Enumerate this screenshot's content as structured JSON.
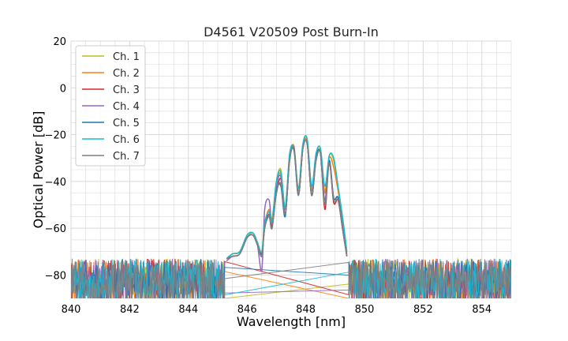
{
  "chart_data": {
    "type": "line",
    "title": "D4561 V20509 Post Burn-In",
    "xlabel": "Wavelength [nm]",
    "ylabel": "Optical Power [dB]",
    "xlim": [
      840,
      855
    ],
    "ylim": [
      -90,
      20
    ],
    "xticks": [
      840,
      842,
      844,
      846,
      848,
      850,
      852,
      854
    ],
    "yticks": [
      20,
      0,
      -20,
      -40,
      -60,
      -80
    ],
    "grid": true,
    "legend_position": "top-left",
    "noise_floor": {
      "mean": -81,
      "min": -90,
      "max": -71
    },
    "series": [
      {
        "name": "Ch. 1",
        "color": "#bcbd22",
        "x": [
          845.3,
          845.5,
          845.75,
          846.0,
          846.2,
          846.35,
          846.5,
          846.6,
          846.75,
          846.85,
          847.0,
          847.15,
          847.3,
          847.45,
          847.6,
          847.75,
          847.9,
          848.05,
          848.2,
          848.35,
          848.5,
          848.65,
          848.8,
          848.95,
          849.1,
          849.25,
          849.4
        ],
        "y": [
          -73,
          -71,
          -70,
          -64,
          -62,
          -66,
          -71,
          -60,
          -52,
          -56,
          -40,
          -35,
          -51,
          -29,
          -26,
          -43,
          -25,
          -23,
          -43,
          -30,
          -27,
          -44,
          -29,
          -31,
          -43,
          -55,
          -70
        ]
      },
      {
        "name": "Ch. 2",
        "color": "#ff7f0e",
        "x": [
          845.3,
          845.5,
          845.75,
          846.0,
          846.2,
          846.35,
          846.5,
          846.6,
          846.75,
          846.85,
          847.0,
          847.15,
          847.3,
          847.45,
          847.6,
          847.75,
          847.9,
          848.05,
          848.2,
          848.35,
          848.5,
          848.65,
          848.8,
          848.95,
          849.1,
          849.25,
          849.4
        ],
        "y": [
          -73,
          -71,
          -70,
          -63,
          -62,
          -66,
          -70,
          -58,
          -52,
          -57,
          -41,
          -37,
          -52,
          -30,
          -25,
          -44,
          -25,
          -23,
          -44,
          -29,
          -26,
          -45,
          -30,
          -34,
          -44,
          -57,
          -71
        ]
      },
      {
        "name": "Ch. 3",
        "color": "#d62728",
        "x": [
          845.3,
          845.5,
          845.75,
          846.0,
          846.2,
          846.35,
          846.5,
          846.6,
          846.75,
          846.85,
          847.0,
          847.15,
          847.3,
          847.45,
          847.6,
          847.75,
          847.9,
          848.05,
          848.2,
          848.35,
          848.5,
          848.65,
          848.8,
          848.95,
          849.1,
          849.25,
          849.4
        ],
        "y": [
          -73,
          -72,
          -71,
          -64,
          -63,
          -67,
          -71,
          -60,
          -54,
          -59,
          -45,
          -39,
          -54,
          -31,
          -26,
          -46,
          -26,
          -24,
          -46,
          -31,
          -28,
          -52,
          -32,
          -49,
          -48,
          -60,
          -72
        ]
      },
      {
        "name": "Ch. 4",
        "color": "#9467bd",
        "x": [
          845.3,
          845.5,
          845.75,
          846.0,
          846.2,
          846.35,
          846.5,
          846.6,
          846.75,
          846.85,
          847.0,
          847.15,
          847.3,
          847.45,
          847.6,
          847.75,
          847.9,
          848.05,
          848.2,
          848.35,
          848.5,
          848.65,
          848.8,
          848.95,
          849.1,
          849.25,
          849.4
        ],
        "y": [
          -74,
          -72,
          -71,
          -64,
          -63,
          -67,
          -78,
          -52,
          -48,
          -58,
          -42,
          -38,
          -54,
          -30,
          -26,
          -45,
          -26,
          -24,
          -46,
          -30,
          -28,
          -48,
          -31,
          -47,
          -47,
          -59,
          -72
        ]
      },
      {
        "name": "Ch. 5",
        "color": "#1f77b4",
        "x": [
          845.3,
          845.5,
          845.75,
          846.0,
          846.2,
          846.35,
          846.5,
          846.6,
          846.75,
          846.85,
          847.0,
          847.15,
          847.3,
          847.45,
          847.6,
          847.75,
          847.9,
          848.05,
          848.2,
          848.35,
          848.5,
          848.65,
          848.8,
          848.95,
          849.1,
          849.25,
          849.4
        ],
        "y": [
          -73,
          -72,
          -71,
          -64,
          -63,
          -67,
          -71,
          -59,
          -55,
          -60,
          -44,
          -42,
          -55,
          -30,
          -27,
          -46,
          -26,
          -24,
          -46,
          -30,
          -28,
          -50,
          -31,
          -47,
          -47,
          -60,
          -72
        ]
      },
      {
        "name": "Ch. 6",
        "color": "#17becf",
        "x": [
          845.3,
          845.5,
          845.75,
          846.0,
          846.2,
          846.35,
          846.5,
          846.6,
          846.75,
          846.85,
          847.0,
          847.15,
          847.3,
          847.45,
          847.6,
          847.75,
          847.9,
          848.05,
          848.2,
          848.35,
          848.5,
          848.65,
          848.8,
          848.95,
          849.1,
          849.25,
          849.4
        ],
        "y": [
          -73,
          -71,
          -70,
          -63,
          -62,
          -66,
          -70,
          -58,
          -53,
          -57,
          -40,
          -36,
          -51,
          -28,
          -26,
          -43,
          -24,
          -22,
          -42,
          -28,
          -26,
          -42,
          -29,
          -30,
          -42,
          -55,
          -70
        ]
      },
      {
        "name": "Ch. 7",
        "color": "#7f7f7f",
        "x": [
          845.3,
          845.5,
          845.75,
          846.0,
          846.2,
          846.35,
          846.5,
          846.6,
          846.75,
          846.85,
          847.0,
          847.15,
          847.3,
          847.45,
          847.6,
          847.75,
          847.9,
          848.05,
          848.2,
          848.35,
          848.5,
          848.65,
          848.8,
          848.95,
          849.1,
          849.25,
          849.4
        ],
        "y": [
          -73,
          -72,
          -71,
          -64,
          -63,
          -67,
          -72,
          -60,
          -55,
          -60,
          -45,
          -41,
          -54,
          -31,
          -26,
          -46,
          -26,
          -24,
          -46,
          -31,
          -28,
          -50,
          -32,
          -48,
          -48,
          -60,
          -72
        ]
      }
    ]
  }
}
